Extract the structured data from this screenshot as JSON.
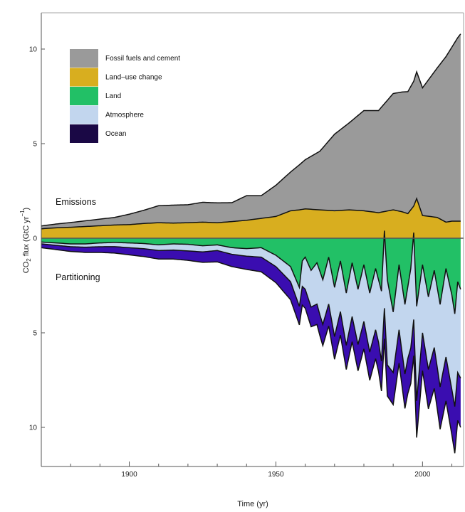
{
  "chart_data": {
    "type": "area",
    "xlabel": "Time (yr)",
    "ylabel": "CO2 flux (GtC yr-1)",
    "ylabel_parts": {
      "base": "CO",
      "sub": "2",
      "rest": " flux (GtC yr",
      "sup": "−1",
      "close": ")"
    },
    "xlim": [
      1870,
      2014
    ],
    "ylim": [
      -11,
      11
    ],
    "x_ticks": [
      1900,
      1950,
      2000
    ],
    "y_ticks": [
      {
        "value": 10,
        "label": "10"
      },
      {
        "value": 5,
        "label": "5"
      },
      {
        "value": 0,
        "label": "0"
      },
      {
        "value": -5,
        "label": "5"
      },
      {
        "value": -10,
        "label": "10"
      }
    ],
    "annotations": {
      "top": "Emissions",
      "bottom": "Partitioning"
    },
    "colors": {
      "fossil": "#9a9a9a",
      "landuse": "#d8ae1f",
      "land": "#22c066",
      "atmosphere": "#c2d6ee",
      "ocean": "#3a0db0",
      "ocean_legend": "#1a0845",
      "zero_line": "#555555"
    },
    "legend": [
      {
        "label": "Fossil fuels and cement",
        "color": "#9a9a9a"
      },
      {
        "label": "Land–use change",
        "color": "#d8ae1f"
      },
      {
        "label": "Land",
        "color": "#22c066"
      },
      {
        "label": "Atmosphere",
        "color": "#c2d6ee"
      },
      {
        "label": "Ocean",
        "color": "#1a0845"
      }
    ],
    "series": [
      {
        "name": "Land–use change",
        "x": [
          1870,
          1875,
          1880,
          1885,
          1890,
          1895,
          1900,
          1905,
          1910,
          1915,
          1920,
          1925,
          1930,
          1935,
          1940,
          1945,
          1950,
          1955,
          1958,
          1960,
          1965,
          1970,
          1975,
          1980,
          1985,
          1990,
          1993,
          1995,
          1997,
          1998,
          2000,
          2005,
          2008,
          2010,
          2012,
          2013
        ],
        "values": [
          0.5,
          0.55,
          0.58,
          0.62,
          0.66,
          0.7,
          0.72,
          0.78,
          0.82,
          0.8,
          0.82,
          0.85,
          0.82,
          0.88,
          0.95,
          1.05,
          1.15,
          1.45,
          1.5,
          1.55,
          1.5,
          1.45,
          1.5,
          1.45,
          1.35,
          1.5,
          1.4,
          1.3,
          1.7,
          2.1,
          1.2,
          1.1,
          0.85,
          0.9,
          0.9,
          0.9
        ]
      },
      {
        "name": "Fossil fuels and cement",
        "x": [
          1870,
          1875,
          1880,
          1885,
          1890,
          1895,
          1900,
          1905,
          1910,
          1915,
          1920,
          1925,
          1930,
          1935,
          1940,
          1945,
          1950,
          1955,
          1960,
          1965,
          1970,
          1975,
          1980,
          1985,
          1990,
          1995,
          1997,
          1998,
          2000,
          2005,
          2008,
          2010,
          2012,
          2013
        ],
        "values": [
          0.15,
          0.2,
          0.25,
          0.3,
          0.35,
          0.4,
          0.55,
          0.7,
          0.9,
          0.95,
          0.95,
          1.05,
          1.05,
          1.0,
          1.3,
          1.2,
          1.65,
          2.05,
          2.6,
          3.1,
          4.05,
          4.6,
          5.3,
          5.4,
          6.15,
          6.45,
          6.6,
          6.7,
          6.75,
          7.9,
          8.75,
          9.2,
          9.7,
          9.9
        ]
      },
      {
        "name": "Ocean",
        "x": [
          1870,
          1880,
          1890,
          1900,
          1910,
          1920,
          1930,
          1940,
          1950,
          1955,
          1960,
          1965,
          1970,
          1975,
          1980,
          1985,
          1990,
          1995,
          2000,
          2005,
          2010,
          2013
        ],
        "values": [
          0.2,
          0.25,
          0.3,
          0.38,
          0.45,
          0.5,
          0.6,
          0.7,
          0.85,
          0.95,
          1.0,
          1.1,
          1.2,
          1.3,
          1.45,
          1.55,
          1.7,
          1.85,
          2.0,
          2.2,
          2.4,
          2.6
        ]
      },
      {
        "name": "Atmosphere",
        "x": [
          1870,
          1880,
          1890,
          1900,
          1910,
          1920,
          1930,
          1940,
          1950,
          1955,
          1958,
          1960,
          1965,
          1970,
          1975,
          1980,
          1985,
          1988,
          1990,
          1995,
          1998,
          2000,
          2005,
          2010,
          2013
        ],
        "values": [
          0.1,
          0.15,
          0.2,
          0.25,
          0.3,
          0.35,
          0.3,
          0.4,
          0.6,
          0.8,
          1.0,
          1.7,
          2.3,
          2.6,
          2.8,
          3.0,
          3.3,
          4.5,
          3.2,
          3.8,
          5.0,
          3.6,
          4.2,
          5.0,
          4.7
        ]
      },
      {
        "name": "Land",
        "x": [
          1870,
          1875,
          1880,
          1885,
          1890,
          1895,
          1900,
          1905,
          1910,
          1915,
          1920,
          1925,
          1930,
          1935,
          1940,
          1945,
          1950,
          1955,
          1958,
          1959,
          1960,
          1962,
          1964,
          1966,
          1968,
          1970,
          1972,
          1974,
          1976,
          1978,
          1980,
          1982,
          1984,
          1986,
          1987,
          1988,
          1990,
          1992,
          1994,
          1996,
          1997,
          1998,
          2000,
          2002,
          2004,
          2006,
          2008,
          2010,
          2011,
          2012,
          2013
        ],
        "values": [
          0.2,
          0.25,
          0.3,
          0.3,
          0.25,
          0.22,
          0.25,
          0.28,
          0.35,
          0.3,
          0.32,
          0.4,
          0.35,
          0.5,
          0.55,
          0.5,
          0.9,
          1.5,
          2.6,
          1.2,
          1.0,
          1.7,
          1.3,
          2.2,
          1.0,
          2.6,
          1.2,
          2.9,
          1.3,
          2.7,
          1.4,
          2.9,
          1.6,
          2.8,
          -0.4,
          2.2,
          3.9,
          1.4,
          3.5,
          1.6,
          -0.3,
          3.6,
          1.4,
          3.1,
          1.7,
          3.5,
          1.6,
          3.0,
          4.0,
          2.3,
          2.7
        ]
      }
    ]
  }
}
